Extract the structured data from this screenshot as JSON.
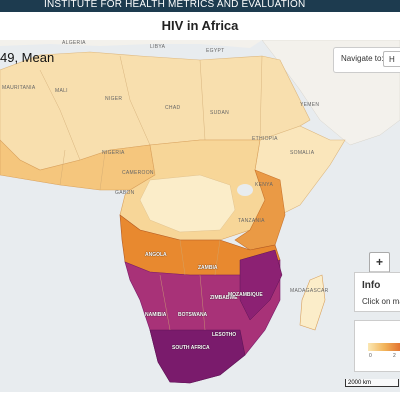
{
  "header": {
    "org": "INSTITUTE FOR HEALTH METRICS AND EVALUATION",
    "title": "HIV in Africa"
  },
  "measure_label": "49, Mean",
  "navigate": {
    "label": "Navigate to:",
    "value": "H"
  },
  "info": {
    "title": "Info",
    "text": "Click on map"
  },
  "legend": {
    "min": "0",
    "tick2": "2"
  },
  "scale_label": "2000 km",
  "zoom": {
    "in": "+",
    "out": "−"
  },
  "colors": {
    "ocean": "#e8ecef",
    "low": "#fbe8b4",
    "mid": "#e2702e",
    "high": "#7a1b6c",
    "header": "#1d3b4f"
  },
  "country_labels": [
    {
      "id": "algeria",
      "text": "ALGERIA"
    },
    {
      "id": "libya",
      "text": "LIBYA"
    },
    {
      "id": "egypt",
      "text": "EGYPT"
    },
    {
      "id": "mauritania",
      "text": "MAURITANIA"
    },
    {
      "id": "mali",
      "text": "MALI"
    },
    {
      "id": "niger",
      "text": "NIGER"
    },
    {
      "id": "chad",
      "text": "CHAD"
    },
    {
      "id": "sudan",
      "text": "SUDAN"
    },
    {
      "id": "yemen",
      "text": "YEMEN"
    },
    {
      "id": "ethiopia",
      "text": "ETHIOPIA"
    },
    {
      "id": "somalia",
      "text": "SOMALIA"
    },
    {
      "id": "nigeria",
      "text": "NIGERIA"
    },
    {
      "id": "cameroon",
      "text": "CAMEROON"
    },
    {
      "id": "kenya",
      "text": "KENYA"
    },
    {
      "id": "gabon",
      "text": "GABON"
    },
    {
      "id": "tanzania",
      "text": "TANZANIA"
    },
    {
      "id": "madagascar",
      "text": "MADAGASCAR"
    }
  ],
  "bold_labels": [
    {
      "id": "angola",
      "text": "ANGOLA"
    },
    {
      "id": "zambia",
      "text": "ZAMBIA"
    },
    {
      "id": "zimbabwe",
      "text": "ZIMBABWE"
    },
    {
      "id": "namibia",
      "text": "NAMIBIA"
    },
    {
      "id": "botswana",
      "text": "BOTSWANA"
    },
    {
      "id": "mozambique",
      "text": "MOZAMBIQUE"
    },
    {
      "id": "south-africa",
      "text": "SOUTH AFRICA"
    },
    {
      "id": "lesotho",
      "text": "LESOTHO"
    }
  ]
}
